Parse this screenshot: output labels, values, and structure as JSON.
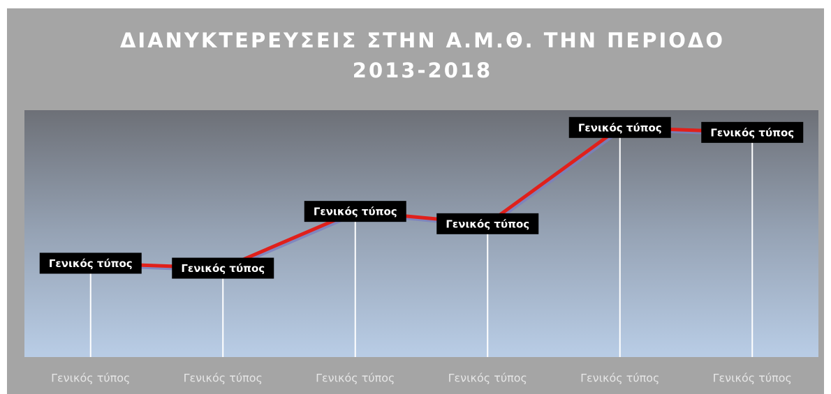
{
  "chart_data": {
    "type": "line",
    "title": [
      "ΔΙΑΝΥΚΤΕΡΕΥΣΕΙΣ ΣΤΗΝ Α.Μ.Θ. ΤΗΝ ΠΕΡΙΟΔΟ",
      "2013-2018"
    ],
    "categories": [
      "Γενικός τύπος",
      "Γενικός τύπος",
      "Γενικός τύπος",
      "Γενικός τύπος",
      "Γενικός τύπος",
      "Γενικός τύπος"
    ],
    "series": [
      {
        "color": "#e0201b",
        "values": [
          38,
          36,
          59,
          54,
          93,
          91
        ],
        "value_labels": [
          "Γενικός τύπος",
          "Γενικός τύπος",
          "Γενικός τύπος",
          "Γενικός τύπος",
          "Γενικός τύπος",
          "Γενικός τύπος"
        ]
      }
    ],
    "ylim": [
      0,
      100
    ],
    "drop_lines": true
  }
}
